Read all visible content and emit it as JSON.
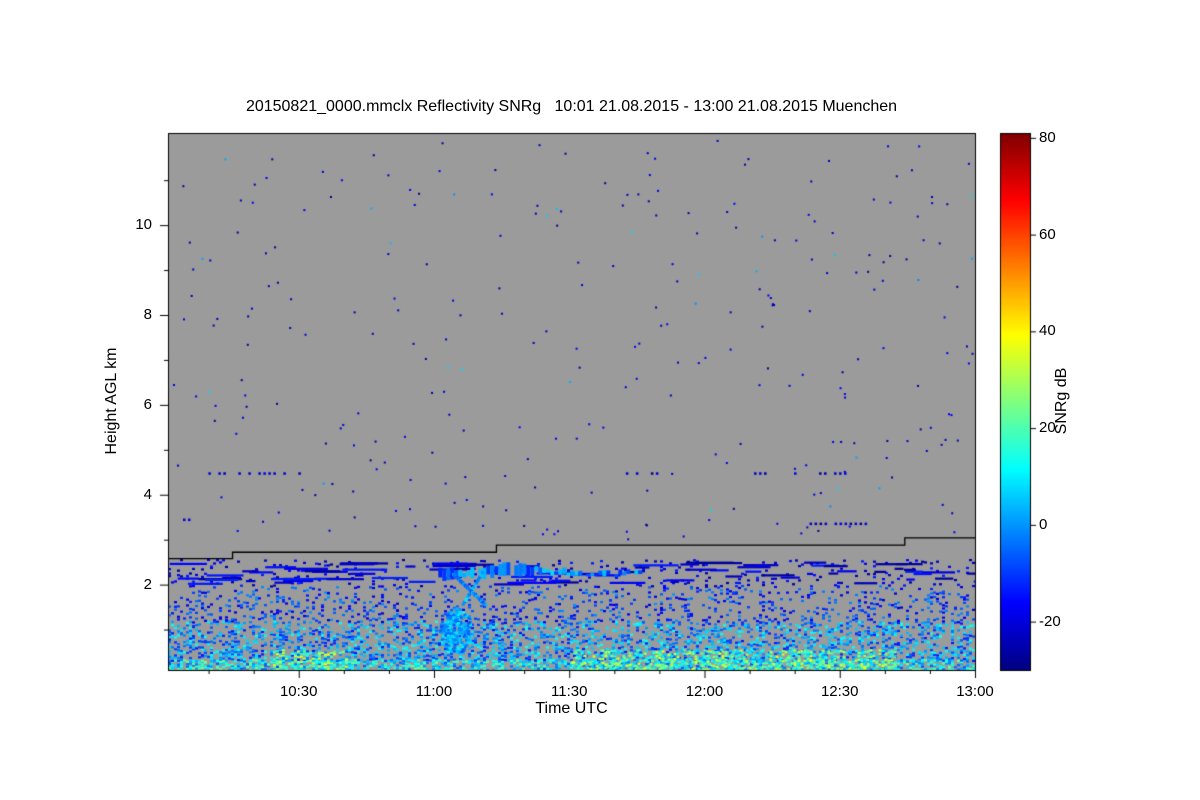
{
  "chart_data": {
    "type": "heatmap",
    "title": "20150821_0000.mmclx Reflectivity SNRg   10:01 21.08.2015 - 13:00 21.08.2015 Muenchen",
    "file": "20150821_0000.mmclx",
    "quantity": "Reflectivity SNRg",
    "period": "10:01 21.08.2015 - 13:00 21.08.2015",
    "station": "Muenchen",
    "xlabel": "Time UTC",
    "ylabel": "Height AGL km",
    "time_start": "10:01",
    "time_end": "13:00",
    "x_ticks": [
      "10:30",
      "11:00",
      "11:30",
      "12:00",
      "12:30",
      "13:00"
    ],
    "x_minor_step_minutes": 10,
    "y_ticks": [
      2,
      4,
      6,
      8,
      10
    ],
    "y_minor_ticks": [
      1,
      3,
      5,
      7,
      9,
      11
    ],
    "ylim": [
      0.1,
      12.05
    ],
    "background_color": "#9b9b9b",
    "colorbar": {
      "label": "SNRg dB",
      "ticks": [
        -20,
        0,
        20,
        40,
        60,
        80
      ],
      "range": [
        -30,
        81
      ],
      "colormap": "jet"
    },
    "features": [
      {
        "type": "speckle_profile",
        "layers": [
          {
            "h": [
              0.1,
              0.35
            ],
            "p": 0.95,
            "snr": [
              -8,
              24
            ]
          },
          {
            "h": [
              0.35,
              1.2
            ],
            "p": 0.7,
            "p_slope": -0.25,
            "snr": [
              -14,
              14
            ]
          },
          {
            "h": [
              1.2,
              2.0
            ],
            "p": 0.3,
            "p_slope": -0.15,
            "snr": [
              -22,
              0
            ]
          },
          {
            "h": [
              2.0,
              2.6
            ],
            "p": 0.13,
            "snr": [
              -28,
              -12
            ]
          }
        ]
      },
      {
        "type": "hot_patches",
        "x": [
          [
            0.13,
            0.22
          ],
          [
            0.5,
            0.78
          ],
          [
            0.78,
            0.9
          ]
        ],
        "h": [
          0.1,
          0.55
        ],
        "p": 0.5,
        "snr": [
          5,
          38
        ]
      },
      {
        "type": "dash_band",
        "n": 85,
        "h": [
          2.02,
          2.52
        ],
        "len": [
          8,
          50
        ],
        "snr": [
          -28,
          -12
        ]
      },
      {
        "type": "band",
        "x": [
          0.33,
          0.585
        ],
        "h_center": 2.28,
        "h_amp": 0.05,
        "thick": [
          0.05,
          0.16
        ],
        "snr": [
          -14,
          8
        ]
      },
      {
        "type": "diagonal",
        "from": [
          0.342,
          0.95
        ],
        "to": [
          0.388,
          2.3
        ],
        "snr": [
          -6,
          10
        ]
      },
      {
        "type": "diagonal",
        "from": [
          0.352,
          2.26
        ],
        "to": [
          0.392,
          1.58
        ],
        "snr": [
          -10,
          6
        ]
      },
      {
        "type": "blob",
        "cx": 0.356,
        "cy": 1.0,
        "rx": 0.02,
        "ry": 0.5,
        "n": 240,
        "snr": [
          -8,
          12
        ]
      },
      {
        "type": "scatter_dots",
        "n": 280,
        "h": [
          3.0,
          11.9
        ],
        "snr": [
          -28,
          -16
        ],
        "cyan_frac": 0.06
      },
      {
        "type": "dot_rows",
        "rows": [
          {
            "h": 4.5,
            "x": [
              0.05,
              0.19
            ]
          },
          {
            "h": 4.5,
            "x": [
              0.555,
              0.605
            ]
          },
          {
            "h": 4.5,
            "x": [
              0.72,
              0.84
            ]
          },
          {
            "h": 3.38,
            "x": [
              0.795,
              0.885
            ]
          },
          {
            "h": 3.47,
            "x": [
              0.0,
              0.025
            ]
          }
        ],
        "p": 0.7,
        "snr": [
          -28,
          -18
        ]
      },
      {
        "type": "step_line",
        "points": [
          [
            0,
            2.58
          ],
          [
            0.08,
            2.58
          ],
          [
            0.08,
            2.72
          ],
          [
            0.407,
            2.72
          ],
          [
            0.407,
            2.88
          ],
          [
            0.913,
            2.88
          ],
          [
            0.913,
            3.04
          ],
          [
            1.0,
            3.04
          ]
        ],
        "color": "#000000"
      }
    ]
  }
}
